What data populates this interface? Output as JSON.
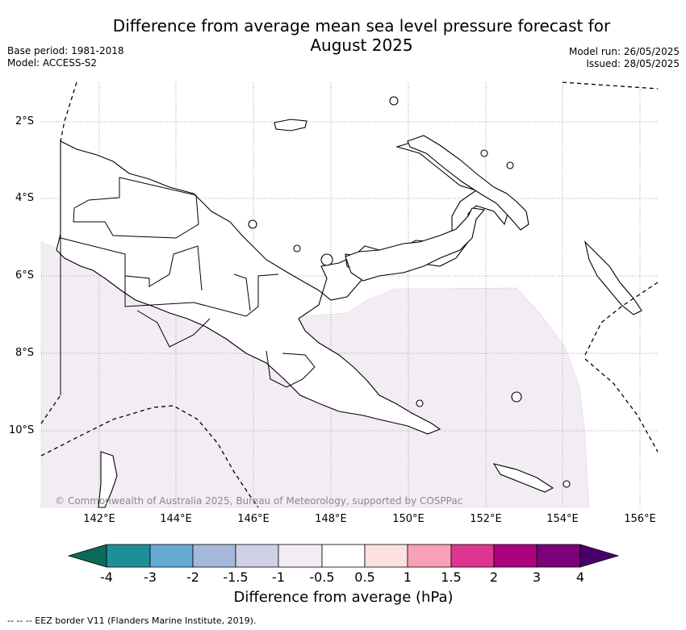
{
  "title": {
    "line1": "Difference from average mean sea level pressure forecast for",
    "line2": "August 2025"
  },
  "meta": {
    "base_period": "Base period: 1981-2018",
    "model": "Model: ACCESS-S2",
    "model_run": "Model run: 26/05/2025",
    "issued": "Issued: 28/05/2025"
  },
  "map": {
    "lat_labels": [
      "2°S",
      "4°S",
      "6°S",
      "8°S",
      "10°S"
    ],
    "lon_labels": [
      "142°E",
      "144°E",
      "146°E",
      "148°E",
      "150°E",
      "152°E",
      "154°E",
      "156°E"
    ],
    "copyright": "© Commonwealth of Australia 2025, Bureau of Meteorology, supported by COSPPac",
    "anomaly_fill_color": "#f4ecf5",
    "land_outline_color": "#000000"
  },
  "legend": {
    "title": "Difference from average (hPa)",
    "ticks": [
      "-4",
      "-3",
      "-2",
      "-1.5",
      "-1",
      "-0.5",
      "0.5",
      "1",
      "1.5",
      "2",
      "3",
      "4"
    ],
    "colors": [
      "#0b6b5a",
      "#1e8f99",
      "#66aad4",
      "#a5b8dc",
      "#cfd0e6",
      "#f4ecf5",
      "#ffffff",
      "#fde0e0",
      "#f9a0b9",
      "#de3590",
      "#ad017e",
      "#7a0177",
      "#49006a"
    ]
  },
  "footer": "--  --  -- EEZ border V11 (Flanders Marine Institute, 2019)."
}
